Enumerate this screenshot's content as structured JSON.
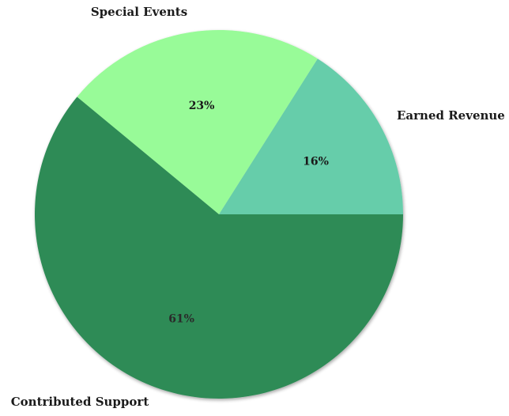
{
  "chart_data": {
    "type": "pie",
    "slices": [
      {
        "label": "Earned Revenue",
        "value": 16,
        "pct_label": "16%",
        "color": "#66cdaa",
        "pct_color": "#1a1a1a"
      },
      {
        "label": "Special Events",
        "value": 23,
        "pct_label": "23%",
        "color": "#98fb98",
        "pct_color": "#1a1a1a"
      },
      {
        "label": "Contributed Support",
        "value": 61,
        "pct_label": "61%",
        "color": "#2e8b57",
        "pct_color": "#2a2a2a"
      }
    ],
    "start_angle": 0,
    "direction": "counterclockwise",
    "legend": "none"
  }
}
